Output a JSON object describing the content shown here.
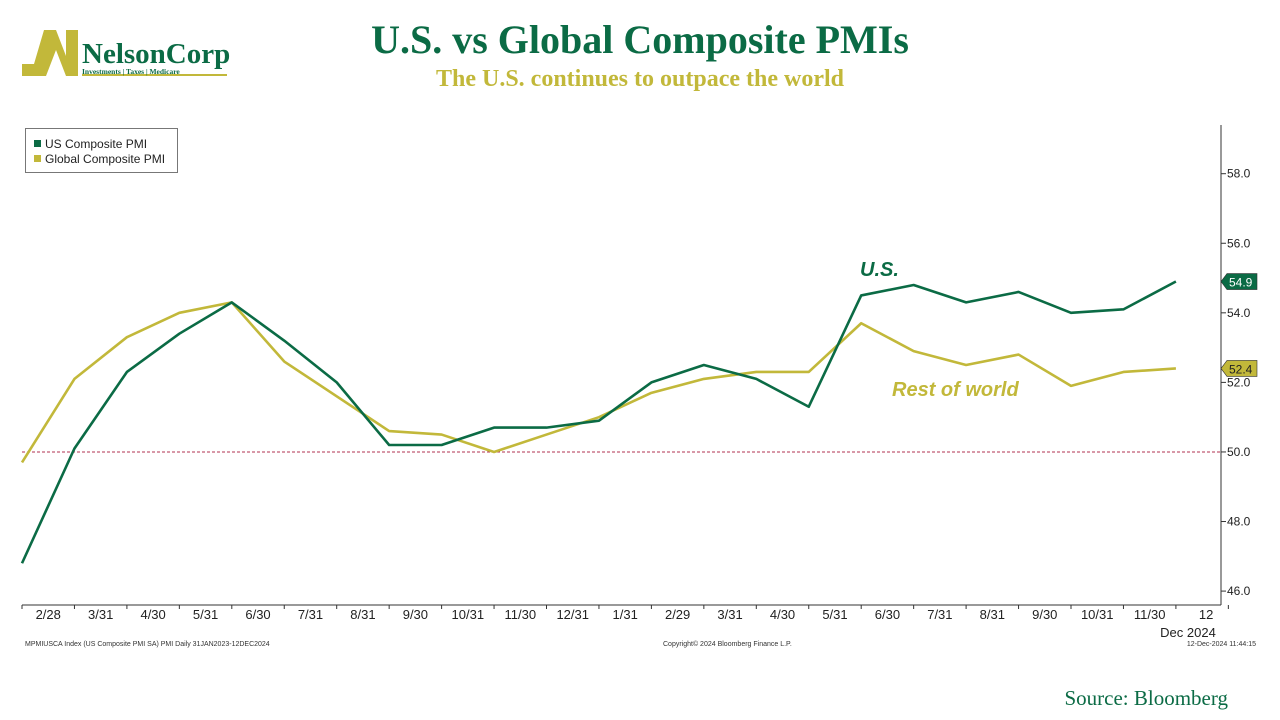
{
  "header": {
    "title": "U.S. vs Global Composite PMIs",
    "subtitle": "The U.S. continues to outpace the world"
  },
  "logo": {
    "name": "NelsonCorp",
    "tagline": "Investments | Taxes | Medicare",
    "colors": {
      "olive": "#c2b83a",
      "green": "#0b6b45"
    }
  },
  "chart_data": {
    "type": "line",
    "categories": [
      "",
      "2/28",
      "3/31",
      "4/30",
      "5/31",
      "6/30",
      "7/31",
      "8/31",
      "9/30",
      "10/31",
      "11/30",
      "12/31",
      "1/31",
      "2/29",
      "3/31",
      "4/30",
      "5/31",
      "6/30",
      "7/31",
      "8/31",
      "9/30",
      "10/31",
      "11/30"
    ],
    "series": [
      {
        "name": "US Composite PMI",
        "color": "#0b6b45",
        "values": [
          46.8,
          50.1,
          52.3,
          53.4,
          54.3,
          53.2,
          52.0,
          50.2,
          50.2,
          50.7,
          50.7,
          50.9,
          52.0,
          52.5,
          52.1,
          51.3,
          54.5,
          54.8,
          54.3,
          54.6,
          54.0,
          54.1,
          54.9
        ]
      },
      {
        "name": "Global Composite PMI",
        "color": "#c2b83a",
        "values": [
          49.7,
          52.1,
          53.3,
          54.0,
          54.3,
          52.6,
          51.6,
          50.6,
          50.5,
          50.0,
          50.5,
          51.0,
          51.7,
          52.1,
          52.3,
          52.3,
          53.7,
          52.9,
          52.5,
          52.8,
          51.9,
          52.3,
          52.4
        ]
      }
    ],
    "last_value_labels": [
      "54.9",
      "52.4"
    ],
    "annotations": [
      {
        "text": "U.S.",
        "color": "#0b6b45"
      },
      {
        "text": "Rest of world",
        "color": "#c2b83a"
      }
    ],
    "reference_line": {
      "y": 50.0,
      "color": "#b03050",
      "style": "dashed"
    },
    "yticks": [
      "46.0",
      "48.0",
      "50.0",
      "52.0",
      "54.0",
      "56.0",
      "58.0"
    ],
    "ylim": [
      45.6,
      59.4
    ],
    "trailing_tick": "12",
    "axis_footer": "Dec 2024",
    "y_axis_side": "right",
    "legend": [
      "US Composite PMI",
      "Global Composite PMI"
    ],
    "legend_position": "top-left",
    "grid": false
  },
  "footnotes": {
    "left": "MPMIUSCA Index (US Composite PMI SA) PMI  Daily 31JAN2023-12DEC2024",
    "center": "Copyright© 2024 Bloomberg Finance L.P.",
    "right": "12-Dec-2024 11:44:15"
  },
  "source": "Source: Bloomberg"
}
